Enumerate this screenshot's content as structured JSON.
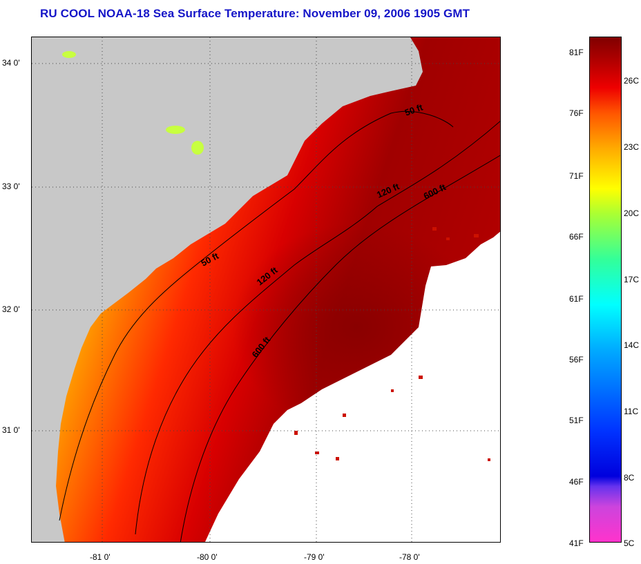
{
  "title": "RU COOL  NOAA-18  Sea Surface Temperature:  November 09, 2006 1905 GMT",
  "map": {
    "lat_labels": [
      "34 0'",
      "33 0'",
      "32 0'",
      "31 0'"
    ],
    "lon_labels": [
      "-81 0'",
      "-80 0'",
      "-79 0'",
      "-78 0'"
    ],
    "contours": {
      "c50_upper": "50 ft",
      "c120_upper": "120 ft",
      "c600_upper": "600 ft",
      "c50_lower": "50 ft",
      "c120_lower": "120 ft",
      "c600_lower": "600 ft"
    },
    "colors": {
      "land": "#c8c8c8",
      "cloud": "#ffffff",
      "warm": "#b00000",
      "cool": "#80ff60"
    }
  },
  "colorbar": {
    "fahrenheit": [
      "81F",
      "76F",
      "71F",
      "66F",
      "61F",
      "56F",
      "51F",
      "46F",
      "41F"
    ],
    "celsius": [
      "26C",
      "23C",
      "20C",
      "17C",
      "14C",
      "11C",
      "8C",
      "5C"
    ]
  }
}
